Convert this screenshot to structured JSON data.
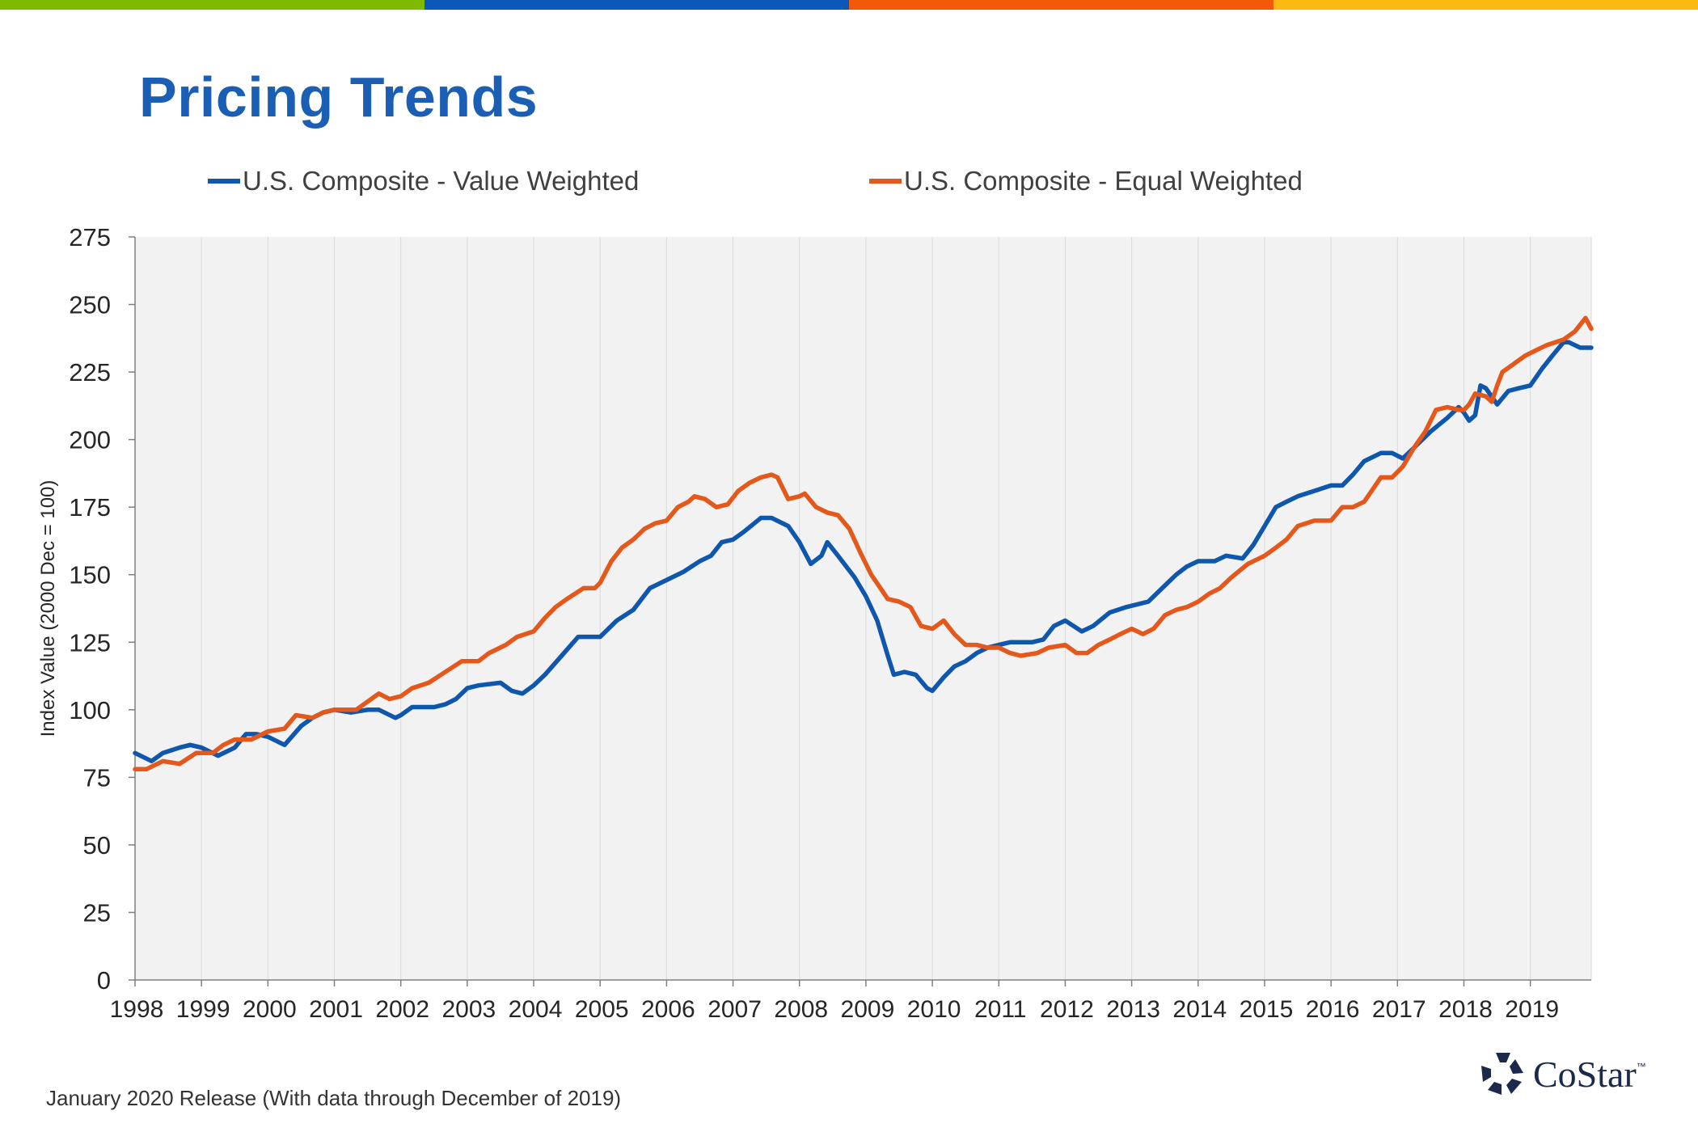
{
  "colors": {
    "bar_green": "#7dba00",
    "bar_blue": "#0a58b8",
    "bar_orange": "#f25a0a",
    "bar_yellow": "#fdb913",
    "title": "#1a5fb4",
    "plot_bg": "#f2f2f2",
    "value_weighted": "#0f56ad",
    "equal_weighted": "#e4581b",
    "logo": "#1b2a4a"
  },
  "page": {
    "title": "Pricing Trends",
    "footnote": "January 2020 Release (With data through December of 2019)"
  },
  "logo": {
    "icon": "costar-star-icon",
    "text": "CoStar",
    "tm": "™"
  },
  "chart_data": {
    "type": "line",
    "title": "",
    "xlabel": "",
    "ylabel": "Index Value (2000 Dec = 100)",
    "ylim": [
      0,
      275
    ],
    "yticks": [
      0,
      25,
      50,
      75,
      100,
      125,
      150,
      175,
      200,
      225,
      250,
      275
    ],
    "xlim": [
      1998.0,
      2019.917
    ],
    "xticks": [
      "1998",
      "1999",
      "2000",
      "2001",
      "2002",
      "2003",
      "2004",
      "2005",
      "2006",
      "2007",
      "2008",
      "2009",
      "2010",
      "2011",
      "2012",
      "2013",
      "2014",
      "2015",
      "2016",
      "2017",
      "2018",
      "2019"
    ],
    "grid": "vertical",
    "legend": "top",
    "series": [
      {
        "name": "U.S. Composite - Value Weighted",
        "color": "#0f56ad",
        "points": [
          [
            1998.0,
            84
          ],
          [
            1998.25,
            81
          ],
          [
            1998.42,
            84
          ],
          [
            1998.67,
            86
          ],
          [
            1998.83,
            87
          ],
          [
            1999.0,
            86
          ],
          [
            1999.25,
            83
          ],
          [
            1999.5,
            86
          ],
          [
            1999.67,
            91
          ],
          [
            1999.83,
            91
          ],
          [
            2000.0,
            90
          ],
          [
            2000.25,
            87
          ],
          [
            2000.5,
            94
          ],
          [
            2000.67,
            97
          ],
          [
            2000.83,
            99
          ],
          [
            2001.0,
            100
          ],
          [
            2001.25,
            99
          ],
          [
            2001.5,
            100
          ],
          [
            2001.67,
            100
          ],
          [
            2001.92,
            97
          ],
          [
            2002.0,
            98
          ],
          [
            2002.17,
            101
          ],
          [
            2002.5,
            101
          ],
          [
            2002.67,
            102
          ],
          [
            2002.83,
            104
          ],
          [
            2003.0,
            108
          ],
          [
            2003.17,
            109
          ],
          [
            2003.5,
            110
          ],
          [
            2003.67,
            107
          ],
          [
            2003.83,
            106
          ],
          [
            2004.0,
            109
          ],
          [
            2004.17,
            113
          ],
          [
            2004.42,
            120
          ],
          [
            2004.67,
            127
          ],
          [
            2004.83,
            127
          ],
          [
            2005.0,
            127
          ],
          [
            2005.25,
            133
          ],
          [
            2005.5,
            137
          ],
          [
            2005.75,
            145
          ],
          [
            2006.0,
            148
          ],
          [
            2006.25,
            151
          ],
          [
            2006.5,
            155
          ],
          [
            2006.67,
            157
          ],
          [
            2006.83,
            162
          ],
          [
            2007.0,
            163
          ],
          [
            2007.17,
            166
          ],
          [
            2007.42,
            171
          ],
          [
            2007.58,
            171
          ],
          [
            2007.83,
            168
          ],
          [
            2008.0,
            162
          ],
          [
            2008.17,
            154
          ],
          [
            2008.33,
            157
          ],
          [
            2008.42,
            162
          ],
          [
            2008.58,
            157
          ],
          [
            2008.83,
            149
          ],
          [
            2009.0,
            142
          ],
          [
            2009.17,
            133
          ],
          [
            2009.33,
            120
          ],
          [
            2009.42,
            113
          ],
          [
            2009.58,
            114
          ],
          [
            2009.75,
            113
          ],
          [
            2009.92,
            108
          ],
          [
            2010.0,
            107
          ],
          [
            2010.17,
            112
          ],
          [
            2010.33,
            116
          ],
          [
            2010.5,
            118
          ],
          [
            2010.67,
            121
          ],
          [
            2010.83,
            123
          ],
          [
            2011.0,
            124
          ],
          [
            2011.17,
            125
          ],
          [
            2011.5,
            125
          ],
          [
            2011.67,
            126
          ],
          [
            2011.83,
            131
          ],
          [
            2012.0,
            133
          ],
          [
            2012.25,
            129
          ],
          [
            2012.42,
            131
          ],
          [
            2012.67,
            136
          ],
          [
            2012.92,
            138
          ],
          [
            2013.25,
            140
          ],
          [
            2013.5,
            146
          ],
          [
            2013.67,
            150
          ],
          [
            2013.83,
            153
          ],
          [
            2014.0,
            155
          ],
          [
            2014.25,
            155
          ],
          [
            2014.42,
            157
          ],
          [
            2014.67,
            156
          ],
          [
            2014.83,
            161
          ],
          [
            2015.0,
            168
          ],
          [
            2015.17,
            175
          ],
          [
            2015.33,
            177
          ],
          [
            2015.5,
            179
          ],
          [
            2015.75,
            181
          ],
          [
            2016.0,
            183
          ],
          [
            2016.17,
            183
          ],
          [
            2016.33,
            187
          ],
          [
            2016.5,
            192
          ],
          [
            2016.75,
            195
          ],
          [
            2016.92,
            195
          ],
          [
            2017.08,
            193
          ],
          [
            2017.25,
            197
          ],
          [
            2017.5,
            203
          ],
          [
            2017.75,
            208
          ],
          [
            2017.92,
            212
          ],
          [
            2018.0,
            210
          ],
          [
            2018.08,
            207
          ],
          [
            2018.17,
            209
          ],
          [
            2018.25,
            220
          ],
          [
            2018.33,
            219
          ],
          [
            2018.5,
            213
          ],
          [
            2018.67,
            218
          ],
          [
            2018.83,
            219
          ],
          [
            2019.0,
            220
          ],
          [
            2019.17,
            226
          ],
          [
            2019.33,
            231
          ],
          [
            2019.5,
            236
          ],
          [
            2019.58,
            236
          ],
          [
            2019.75,
            234
          ],
          [
            2019.917,
            234
          ]
        ]
      },
      {
        "name": "U.S. Composite - Equal Weighted",
        "color": "#e4581b",
        "points": [
          [
            1998.0,
            78
          ],
          [
            1998.17,
            78
          ],
          [
            1998.42,
            81
          ],
          [
            1998.67,
            80
          ],
          [
            1998.92,
            84
          ],
          [
            1999.17,
            84
          ],
          [
            1999.33,
            87
          ],
          [
            1999.5,
            89
          ],
          [
            1999.75,
            89
          ],
          [
            2000.0,
            92
          ],
          [
            2000.25,
            93
          ],
          [
            2000.42,
            98
          ],
          [
            2000.67,
            97
          ],
          [
            2000.83,
            99
          ],
          [
            2001.0,
            100
          ],
          [
            2001.33,
            100
          ],
          [
            2001.5,
            103
          ],
          [
            2001.67,
            106
          ],
          [
            2001.83,
            104
          ],
          [
            2002.0,
            105
          ],
          [
            2002.17,
            108
          ],
          [
            2002.42,
            110
          ],
          [
            2002.67,
            114
          ],
          [
            2002.92,
            118
          ],
          [
            2003.17,
            118
          ],
          [
            2003.33,
            121
          ],
          [
            2003.58,
            124
          ],
          [
            2003.75,
            127
          ],
          [
            2004.0,
            129
          ],
          [
            2004.17,
            134
          ],
          [
            2004.33,
            138
          ],
          [
            2004.5,
            141
          ],
          [
            2004.75,
            145
          ],
          [
            2004.92,
            145
          ],
          [
            2005.0,
            147
          ],
          [
            2005.17,
            155
          ],
          [
            2005.33,
            160
          ],
          [
            2005.5,
            163
          ],
          [
            2005.67,
            167
          ],
          [
            2005.83,
            169
          ],
          [
            2006.0,
            170
          ],
          [
            2006.17,
            175
          ],
          [
            2006.33,
            177
          ],
          [
            2006.42,
            179
          ],
          [
            2006.58,
            178
          ],
          [
            2006.75,
            175
          ],
          [
            2006.92,
            176
          ],
          [
            2007.08,
            181
          ],
          [
            2007.25,
            184
          ],
          [
            2007.42,
            186
          ],
          [
            2007.58,
            187
          ],
          [
            2007.67,
            186
          ],
          [
            2007.83,
            178
          ],
          [
            2008.0,
            179
          ],
          [
            2008.08,
            180
          ],
          [
            2008.25,
            175
          ],
          [
            2008.42,
            173
          ],
          [
            2008.58,
            172
          ],
          [
            2008.75,
            167
          ],
          [
            2008.92,
            158
          ],
          [
            2009.08,
            150
          ],
          [
            2009.33,
            141
          ],
          [
            2009.5,
            140
          ],
          [
            2009.67,
            138
          ],
          [
            2009.83,
            131
          ],
          [
            2010.0,
            130
          ],
          [
            2010.17,
            133
          ],
          [
            2010.33,
            128
          ],
          [
            2010.5,
            124
          ],
          [
            2010.67,
            124
          ],
          [
            2010.83,
            123
          ],
          [
            2011.0,
            123
          ],
          [
            2011.17,
            121
          ],
          [
            2011.33,
            120
          ],
          [
            2011.58,
            121
          ],
          [
            2011.75,
            123
          ],
          [
            2012.0,
            124
          ],
          [
            2012.17,
            121
          ],
          [
            2012.33,
            121
          ],
          [
            2012.5,
            124
          ],
          [
            2012.67,
            126
          ],
          [
            2012.83,
            128
          ],
          [
            2013.0,
            130
          ],
          [
            2013.17,
            128
          ],
          [
            2013.33,
            130
          ],
          [
            2013.5,
            135
          ],
          [
            2013.67,
            137
          ],
          [
            2013.83,
            138
          ],
          [
            2014.0,
            140
          ],
          [
            2014.17,
            143
          ],
          [
            2014.33,
            145
          ],
          [
            2014.5,
            149
          ],
          [
            2014.75,
            154
          ],
          [
            2015.0,
            157
          ],
          [
            2015.17,
            160
          ],
          [
            2015.33,
            163
          ],
          [
            2015.5,
            168
          ],
          [
            2015.75,
            170
          ],
          [
            2016.0,
            170
          ],
          [
            2016.17,
            175
          ],
          [
            2016.33,
            175
          ],
          [
            2016.5,
            177
          ],
          [
            2016.75,
            186
          ],
          [
            2016.92,
            186
          ],
          [
            2017.08,
            190
          ],
          [
            2017.25,
            197
          ],
          [
            2017.42,
            203
          ],
          [
            2017.58,
            211
          ],
          [
            2017.75,
            212
          ],
          [
            2017.92,
            211
          ],
          [
            2018.0,
            211
          ],
          [
            2018.08,
            213
          ],
          [
            2018.17,
            217
          ],
          [
            2018.33,
            216
          ],
          [
            2018.42,
            214
          ],
          [
            2018.5,
            220
          ],
          [
            2018.58,
            225
          ],
          [
            2018.75,
            228
          ],
          [
            2018.92,
            231
          ],
          [
            2019.08,
            233
          ],
          [
            2019.25,
            235
          ],
          [
            2019.5,
            237
          ],
          [
            2019.67,
            240
          ],
          [
            2019.83,
            245
          ],
          [
            2019.917,
            241
          ]
        ]
      }
    ]
  }
}
